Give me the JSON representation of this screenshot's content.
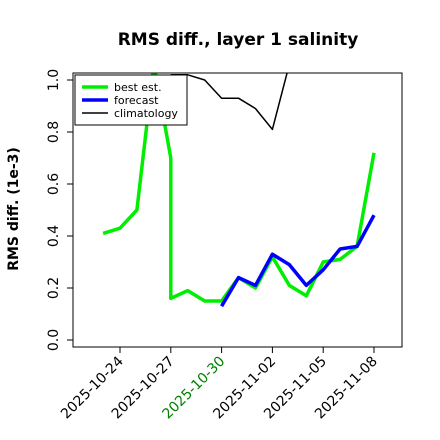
{
  "chart_data": {
    "type": "line",
    "title": "RMS diff., layer 1 salinity",
    "ylabel": "RMS diff. (1e-3)",
    "xlabel": "",
    "ylim": [
      -0.02,
      1.06
    ],
    "yticks": [
      "0.0",
      "0.2",
      "0.4",
      "0.6",
      "0.8",
      "1.0"
    ],
    "xlim": [
      "2025-10-22",
      "2025-11-08"
    ],
    "xticks": [
      {
        "date": "2025-10-24",
        "label": "2025-10-24",
        "color": "#000000"
      },
      {
        "date": "2025-10-27",
        "label": "2025-10-27",
        "color": "#000000"
      },
      {
        "date": "2025-10-30",
        "label": "2025-10-30",
        "color": "#008000"
      },
      {
        "date": "2025-11-02",
        "label": "2025-11-02",
        "color": "#000000"
      },
      {
        "date": "2025-11-05",
        "label": "2025-11-05",
        "color": "#000000"
      },
      {
        "date": "2025-11-08",
        "label": "2025-11-08",
        "color": "#000000"
      }
    ],
    "legend_position": "top-left",
    "series": [
      {
        "name": "best est.",
        "color": "#00ee00",
        "points": [
          [
            "2025-10-23",
            0.41
          ],
          [
            "2025-10-24",
            0.43
          ],
          [
            "2025-10-25",
            0.5
          ],
          [
            "2025-10-26",
            1.06
          ],
          [
            "2025-10-27",
            0.7
          ],
          [
            "2025-10-27",
            0.16
          ],
          [
            "2025-10-28",
            0.19
          ],
          [
            "2025-10-29",
            0.15
          ],
          [
            "2025-10-30",
            0.15
          ],
          [
            "2025-10-31",
            0.24
          ],
          [
            "2025-11-01",
            0.2
          ],
          [
            "2025-11-02",
            0.32
          ],
          [
            "2025-11-03",
            0.21
          ],
          [
            "2025-11-04",
            0.17
          ],
          [
            "2025-11-05",
            0.3
          ],
          [
            "2025-11-06",
            0.31
          ],
          [
            "2025-11-07",
            0.36
          ],
          [
            "2025-11-08",
            0.72
          ]
        ]
      },
      {
        "name": "forecast",
        "color": "#0000ff",
        "points": [
          [
            "2025-10-30",
            0.13
          ],
          [
            "2025-10-31",
            0.24
          ],
          [
            "2025-11-01",
            0.21
          ],
          [
            "2025-11-02",
            0.33
          ],
          [
            "2025-11-03",
            0.29
          ],
          [
            "2025-11-04",
            0.21
          ],
          [
            "2025-11-05",
            0.27
          ],
          [
            "2025-11-06",
            0.35
          ],
          [
            "2025-11-07",
            0.36
          ],
          [
            "2025-11-08",
            0.48
          ]
        ]
      },
      {
        "name": "climatology",
        "color": "#000000",
        "points": [
          [
            "2025-10-27",
            1.02
          ],
          [
            "2025-10-28",
            1.02
          ],
          [
            "2025-10-29",
            1.0
          ],
          [
            "2025-10-30",
            0.93
          ],
          [
            "2025-10-31",
            0.93
          ],
          [
            "2025-11-01",
            0.89
          ],
          [
            "2025-11-02",
            0.81
          ],
          [
            "2025-11-03",
            1.06
          ]
        ]
      }
    ]
  }
}
